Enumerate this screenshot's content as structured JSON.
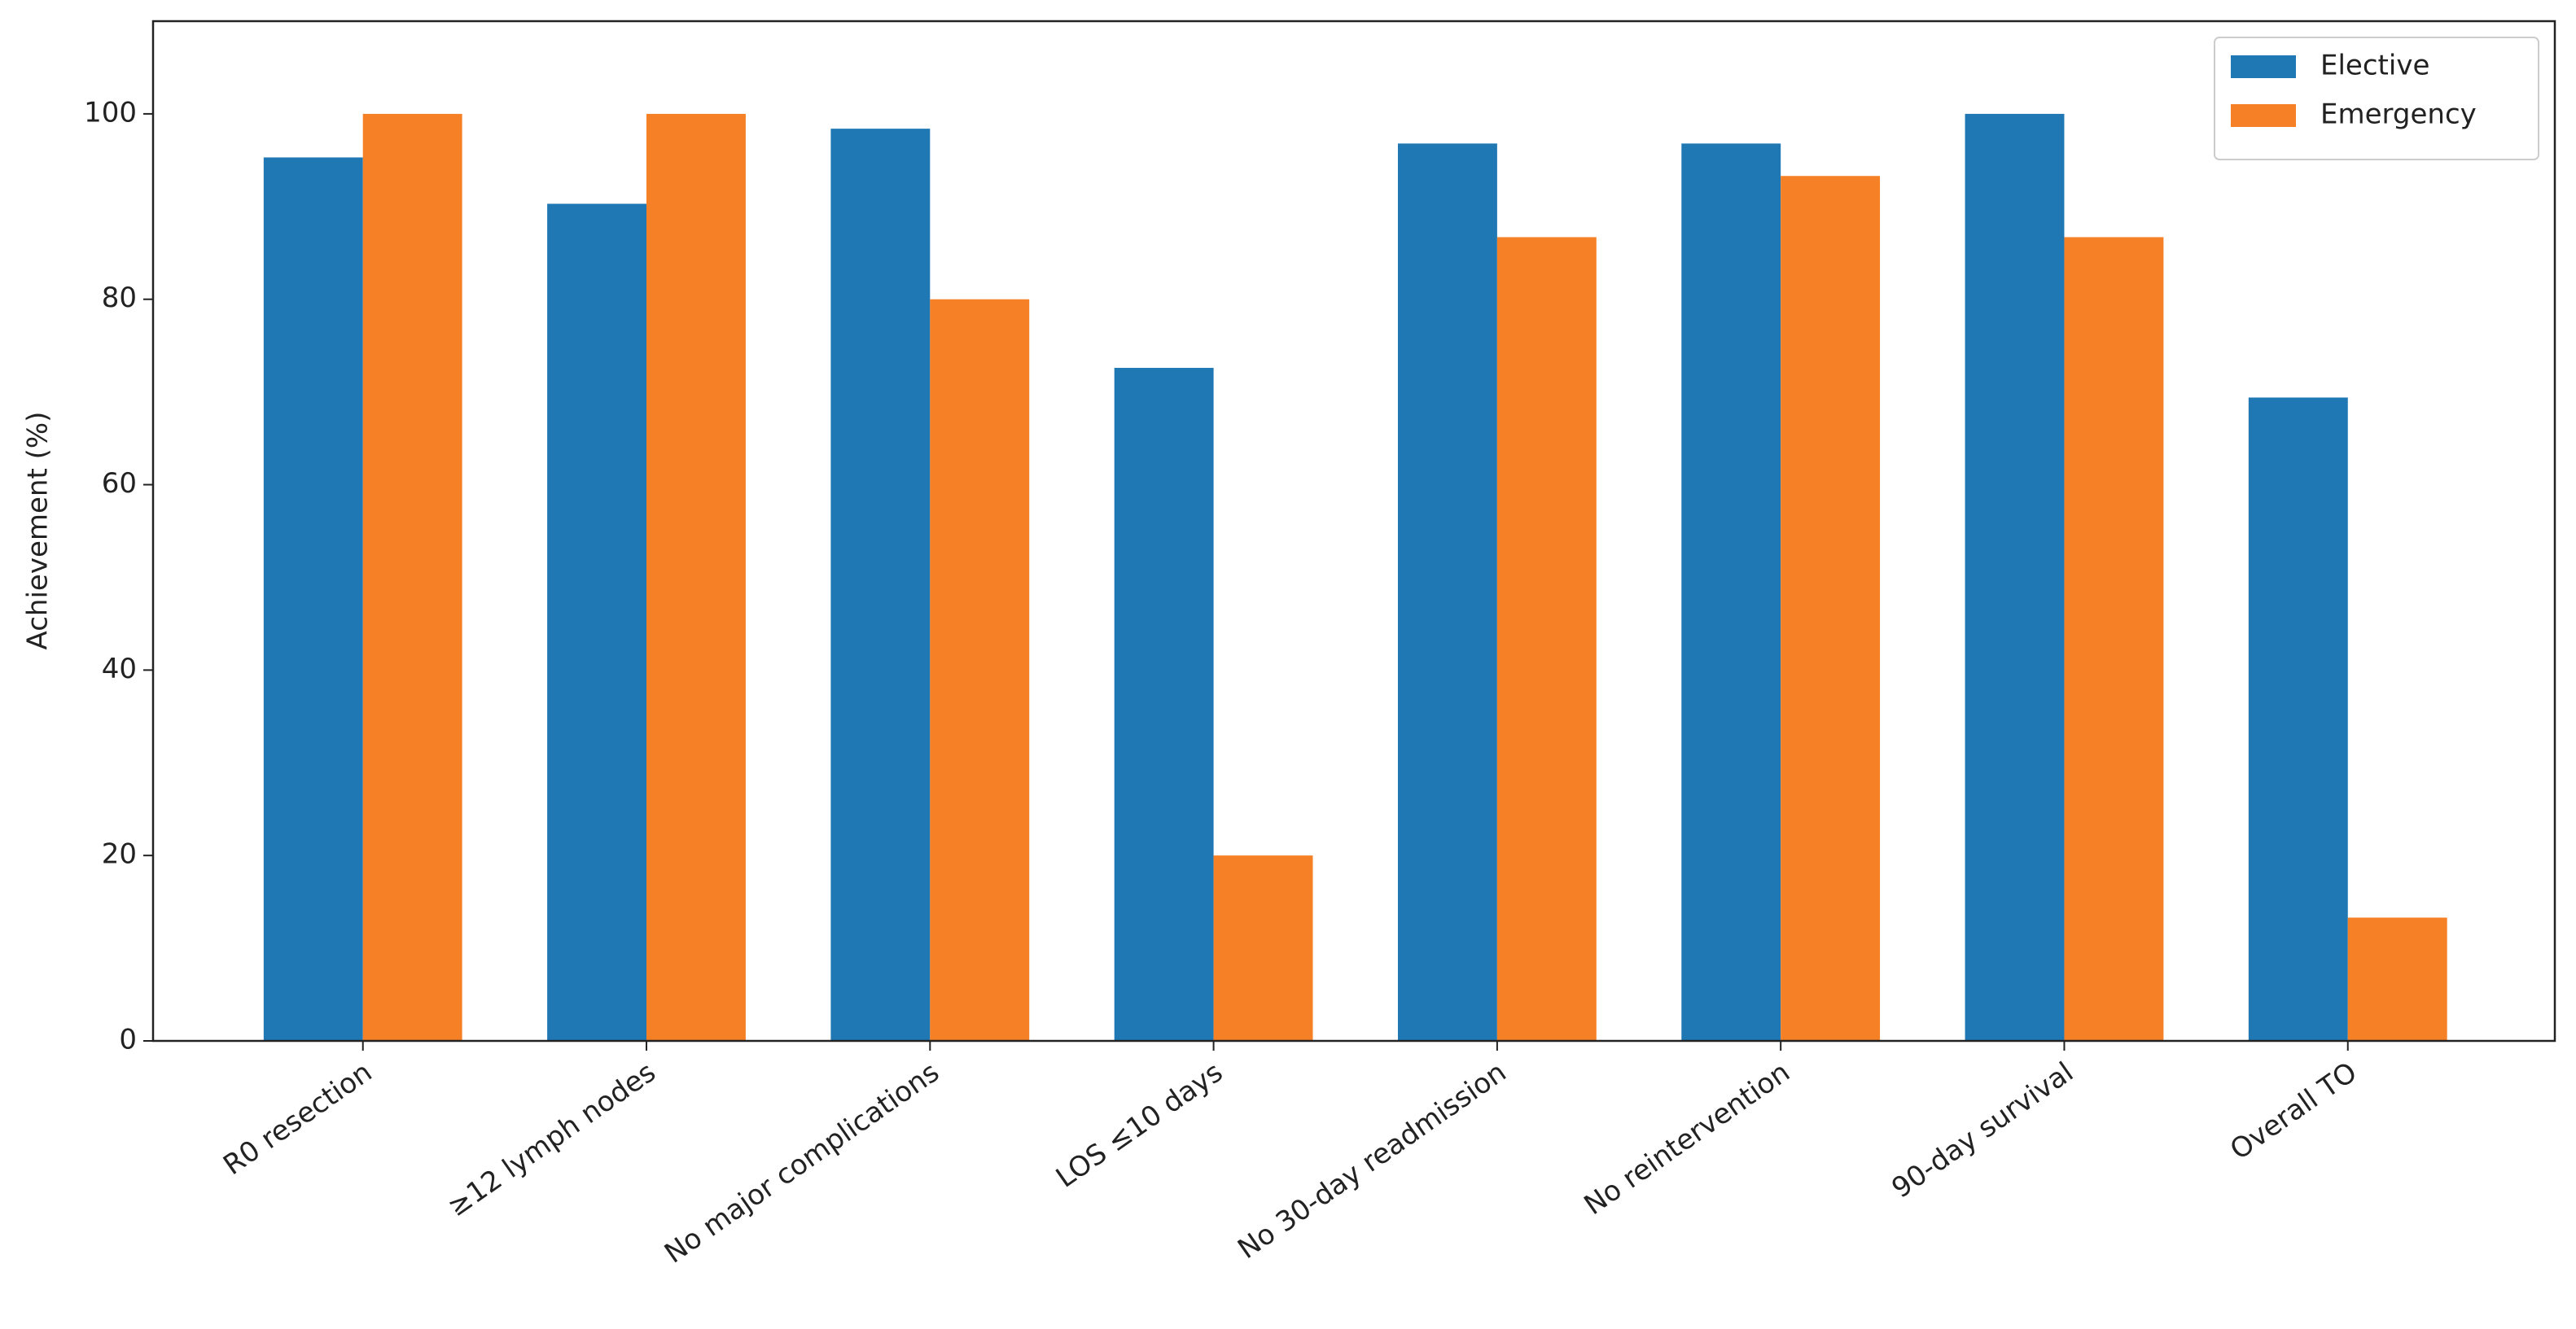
{
  "chart_data": {
    "type": "bar",
    "y_label": "Achievement (%)",
    "categories": [
      "R0 resection",
      "≥12 lymph nodes",
      "No major complications",
      "LOS ≤10 days",
      "No 30-day readmission",
      "No reintervention",
      "90-day survival",
      "Overall TO"
    ],
    "series": [
      {
        "name": "Elective",
        "color": "#1f77b4",
        "values": [
          95.3,
          90.3,
          98.4,
          72.6,
          96.8,
          96.8,
          100,
          69.4
        ]
      },
      {
        "name": "Emergency",
        "color": "#f58025",
        "values": [
          100,
          100,
          80,
          20,
          86.7,
          93.3,
          86.7,
          13.3
        ]
      }
    ],
    "ylim": [
      0,
      110
    ],
    "yticks": [
      0,
      20,
      40,
      60,
      80,
      100
    ],
    "legend": "upper right"
  }
}
